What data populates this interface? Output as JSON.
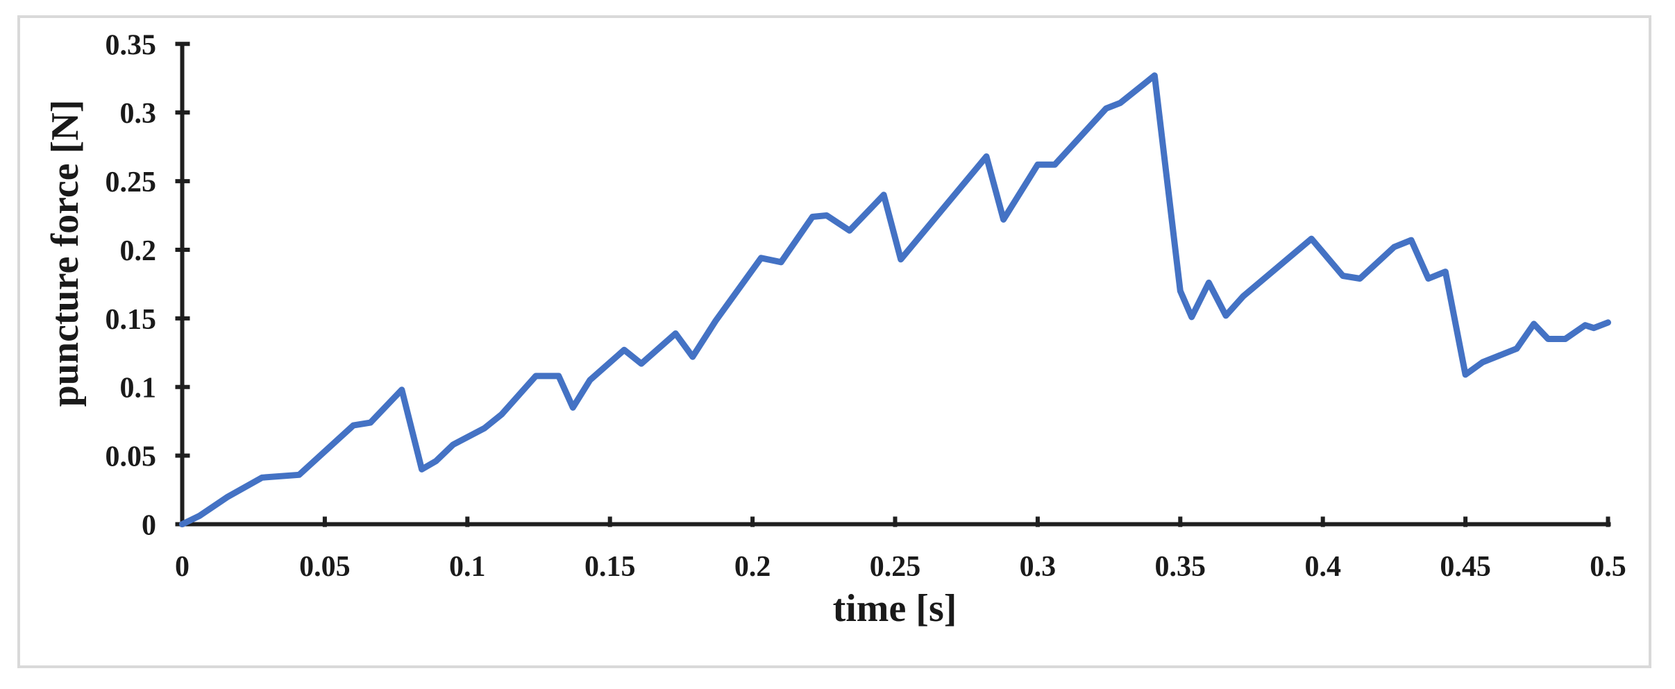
{
  "figure": {
    "background": "#ffffff",
    "border_color": "#d9d9d9",
    "axis_color": "#1f1f1f",
    "text_color": "#1a1a1a"
  },
  "chart_data": {
    "type": "line",
    "title": "",
    "xlabel": "time [s]",
    "ylabel": "puncture force [N]",
    "xlim": [
      0,
      0.5
    ],
    "ylim": [
      0,
      0.35
    ],
    "grid": false,
    "legend": "none",
    "x_ticks": {
      "values": [
        0,
        0.05,
        0.1,
        0.15,
        0.2,
        0.25,
        0.3,
        0.35,
        0.4,
        0.45,
        0.5
      ],
      "labels": [
        "0",
        "0.05",
        "0.1",
        "0.15",
        "0.2",
        "0.25",
        "0.3",
        "0.35",
        "0.4",
        "0.45",
        "0.5"
      ]
    },
    "y_ticks": {
      "values": [
        0,
        0.05,
        0.1,
        0.15,
        0.2,
        0.25,
        0.3,
        0.35
      ],
      "labels": [
        "0",
        "0.05",
        "0.1",
        "0.15",
        "0.2",
        "0.25",
        "0.3",
        "0.35"
      ]
    },
    "series": [
      {
        "name": "puncture force",
        "color": "#4472C4",
        "line_width": 9,
        "x": [
          0.0,
          0.006,
          0.016,
          0.028,
          0.041,
          0.06,
          0.066,
          0.077,
          0.084,
          0.089,
          0.095,
          0.106,
          0.112,
          0.124,
          0.132,
          0.137,
          0.143,
          0.155,
          0.161,
          0.173,
          0.179,
          0.187,
          0.203,
          0.21,
          0.221,
          0.226,
          0.234,
          0.246,
          0.252,
          0.282,
          0.288,
          0.3,
          0.306,
          0.324,
          0.329,
          0.341,
          0.35,
          0.354,
          0.36,
          0.366,
          0.372,
          0.396,
          0.407,
          0.413,
          0.425,
          0.431,
          0.437,
          0.443,
          0.45,
          0.456,
          0.468,
          0.474,
          0.479,
          0.485,
          0.492,
          0.495,
          0.5
        ],
        "y": [
          0.0,
          0.006,
          0.02,
          0.034,
          0.036,
          0.072,
          0.074,
          0.098,
          0.04,
          0.046,
          0.058,
          0.07,
          0.08,
          0.108,
          0.108,
          0.085,
          0.105,
          0.127,
          0.117,
          0.139,
          0.122,
          0.148,
          0.194,
          0.191,
          0.224,
          0.225,
          0.214,
          0.24,
          0.193,
          0.268,
          0.222,
          0.262,
          0.262,
          0.303,
          0.307,
          0.327,
          0.17,
          0.151,
          0.176,
          0.152,
          0.166,
          0.208,
          0.181,
          0.179,
          0.202,
          0.207,
          0.179,
          0.184,
          0.109,
          0.118,
          0.128,
          0.146,
          0.135,
          0.135,
          0.145,
          0.143,
          0.147
        ]
      }
    ]
  }
}
